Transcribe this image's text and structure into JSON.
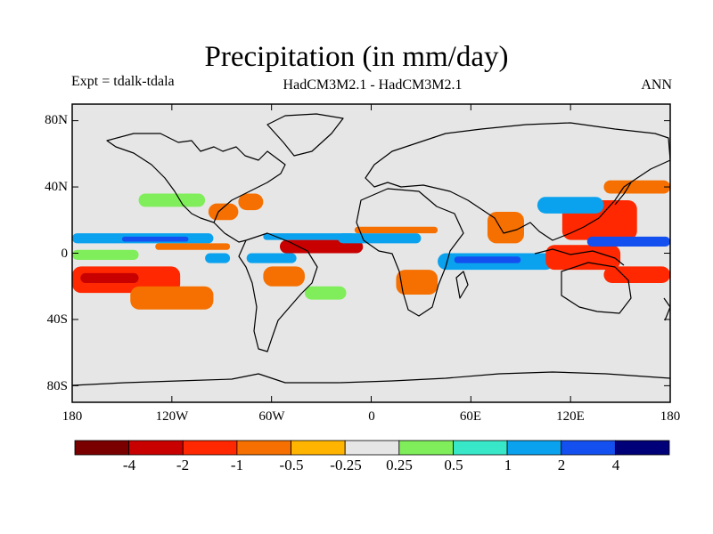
{
  "title": "Precipitation (in mm/day)",
  "experiment": "Expt = tdalk-tdala",
  "models": "HadCM3M2.1 - HadCM3M2.1",
  "season": "ANN",
  "axes": {
    "lat_labels": [
      "80N",
      "40N",
      "0",
      "40S",
      "80S"
    ],
    "lon_labels": [
      "180",
      "120W",
      "60W",
      "0",
      "60E",
      "120E",
      "180"
    ]
  },
  "colorbar": {
    "colors": [
      "#7a0000",
      "#c80000",
      "#ff2800",
      "#f57000",
      "#ffb400",
      "#e6e6e6",
      "#7fee5a",
      "#38e7c8",
      "#0aa2ee",
      "#1450f0",
      "#000078"
    ],
    "labels": [
      "-4",
      "-2",
      "-1",
      "-0.5",
      "-0.25",
      "0.25",
      "0.5",
      "1",
      "2",
      "4"
    ]
  },
  "chart_data": {
    "type": "heatmap",
    "variable": "Precipitation difference",
    "units": "mm/day",
    "x_range": [
      -180,
      180
    ],
    "y_range": [
      -90,
      90
    ],
    "levels": [
      -4,
      -2,
      -1,
      -0.5,
      -0.25,
      0.25,
      0.5,
      1,
      2,
      4
    ],
    "regions": [
      {
        "name": "north-pacific-itcz-wet",
        "lon": [
          -180,
          -95
        ],
        "lat": [
          6,
          12
        ],
        "value": 1.5
      },
      {
        "name": "north-pacific-itcz-wet-core",
        "lon": [
          -150,
          -110
        ],
        "lat": [
          7,
          10
        ],
        "value": 2.5
      },
      {
        "name": "north-pacific-itcz-dry-south",
        "lon": [
          -130,
          -85
        ],
        "lat": [
          2,
          6
        ],
        "value": -0.75
      },
      {
        "name": "south-pacific-dry",
        "lon": [
          -180,
          -115
        ],
        "lat": [
          -24,
          -8
        ],
        "value": -1.5
      },
      {
        "name": "south-pacific-dry-core",
        "lon": [
          -175,
          -140
        ],
        "lat": [
          -18,
          -12
        ],
        "value": -3
      },
      {
        "name": "south-pacific-dry-tail",
        "lon": [
          -145,
          -95
        ],
        "lat": [
          -34,
          -20
        ],
        "value": -0.75
      },
      {
        "name": "central-pacific-wet",
        "lon": [
          -180,
          -140
        ],
        "lat": [
          -4,
          2
        ],
        "value": 0.4
      },
      {
        "name": "equatorial-pacific-east-wet",
        "lon": [
          -100,
          -85
        ],
        "lat": [
          -6,
          0
        ],
        "value": 1.5
      },
      {
        "name": "north-atlantic-wet",
        "lon": [
          -140,
          -100
        ],
        "lat": [
          28,
          36
        ],
        "value": 0.4
      },
      {
        "name": "gulf-of-mexico-dry",
        "lon": [
          -98,
          -80
        ],
        "lat": [
          20,
          30
        ],
        "value": -0.5
      },
      {
        "name": "us-east-coast-dry",
        "lon": [
          -80,
          -65
        ],
        "lat": [
          26,
          36
        ],
        "value": -0.75
      },
      {
        "name": "atlantic-itcz-wet",
        "lon": [
          -65,
          -10
        ],
        "lat": [
          8,
          12
        ],
        "value": 1.5
      },
      {
        "name": "atlantic-itcz-dry",
        "lon": [
          -55,
          -5
        ],
        "lat": [
          0,
          8
        ],
        "value": -2.5
      },
      {
        "name": "atlantic-itcz-dry-core",
        "lon": [
          -40,
          -5
        ],
        "lat": [
          1,
          6
        ],
        "value": -3
      },
      {
        "name": "amazon-wet",
        "lon": [
          -75,
          -45
        ],
        "lat": [
          -6,
          0
        ],
        "value": 1.5
      },
      {
        "name": "south-america-dry",
        "lon": [
          -65,
          -40
        ],
        "lat": [
          -20,
          -8
        ],
        "value": -0.75
      },
      {
        "name": "south-atlantic-wet",
        "lon": [
          -40,
          -15
        ],
        "lat": [
          -28,
          -20
        ],
        "value": 0.4
      },
      {
        "name": "west-africa-wet",
        "lon": [
          -20,
          30
        ],
        "lat": [
          6,
          12
        ],
        "value": 1.5
      },
      {
        "name": "sahel-dry",
        "lon": [
          -10,
          40
        ],
        "lat": [
          12,
          16
        ],
        "value": -0.5
      },
      {
        "name": "southern-africa-dry",
        "lon": [
          15,
          40
        ],
        "lat": [
          -25,
          -10
        ],
        "value": -0.75
      },
      {
        "name": "indian-ocean-wet",
        "lon": [
          40,
          110
        ],
        "lat": [
          -10,
          0
        ],
        "value": 1.5
      },
      {
        "name": "indian-ocean-wet-core",
        "lon": [
          50,
          90
        ],
        "lat": [
          -6,
          -2
        ],
        "value": 2.5
      },
      {
        "name": "india-dry",
        "lon": [
          70,
          92
        ],
        "lat": [
          6,
          25
        ],
        "value": -0.75
      },
      {
        "name": "maritime-continent-dry",
        "lon": [
          105,
          150
        ],
        "lat": [
          -10,
          5
        ],
        "value": -1.5
      },
      {
        "name": "west-pacific-dry",
        "lon": [
          115,
          160
        ],
        "lat": [
          8,
          32
        ],
        "value": -1.5
      },
      {
        "name": "west-pacific-wet",
        "lon": [
          130,
          180
        ],
        "lat": [
          4,
          10
        ],
        "value": 2.5
      },
      {
        "name": "south-pacific-convergence-dry",
        "lon": [
          140,
          180
        ],
        "lat": [
          -18,
          -8
        ],
        "value": -1.5
      },
      {
        "name": "east-asia-wet",
        "lon": [
          100,
          140
        ],
        "lat": [
          24,
          34
        ],
        "value": 1.5
      },
      {
        "name": "north-west-pacific-dry",
        "lon": [
          140,
          180
        ],
        "lat": [
          36,
          44
        ],
        "value": -0.5
      }
    ]
  }
}
